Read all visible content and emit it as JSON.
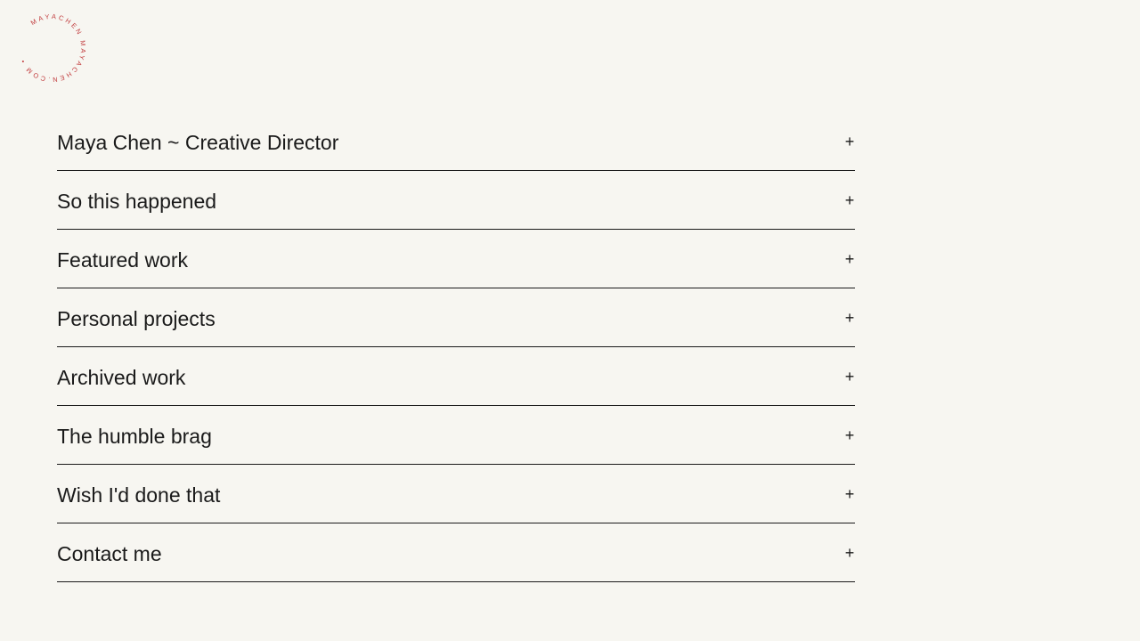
{
  "logo": {
    "text": "MAYACHEN MAYACHEN.COM • ",
    "color": "#c0393b"
  },
  "menu": {
    "items": [
      {
        "label": "Maya Chen ~ Creative Director",
        "icon": "plus-icon",
        "toggle": "+"
      },
      {
        "label": "So this happened",
        "icon": "plus-icon",
        "toggle": "+"
      },
      {
        "label": "Featured work",
        "icon": "plus-icon",
        "toggle": "+"
      },
      {
        "label": "Personal projects",
        "icon": "plus-icon",
        "toggle": "+"
      },
      {
        "label": "Archived work",
        "icon": "plus-icon",
        "toggle": "+"
      },
      {
        "label": "The humble brag",
        "icon": "plus-icon",
        "toggle": "+"
      },
      {
        "label": "Wish I'd done that",
        "icon": "plus-icon",
        "toggle": "+"
      },
      {
        "label": "Contact me",
        "icon": "plus-icon",
        "toggle": "+"
      }
    ]
  }
}
